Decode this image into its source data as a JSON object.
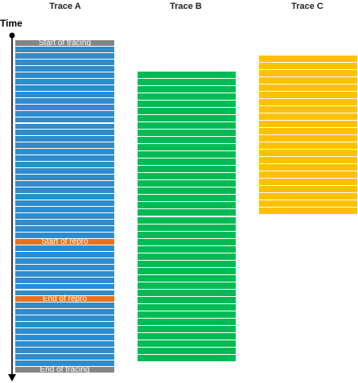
{
  "time_label": "Time",
  "traces": [
    {
      "name": "Trace A",
      "color": "#2f8ccc",
      "rows": 52,
      "markers": [
        {
          "label": "Start of tracing",
          "row": 0,
          "color": "#848484"
        },
        {
          "label": "Start of repro",
          "row": 31,
          "color": "#e8731e"
        },
        {
          "label": "End of repro",
          "row": 40,
          "color": "#e8731e"
        },
        {
          "label": "End of tracing",
          "row": 51,
          "color": "#848484"
        }
      ]
    },
    {
      "name": "Trace B",
      "color": "#00bb55",
      "rows": 40,
      "markers": []
    },
    {
      "name": "Trace C",
      "color": "#ffc000",
      "rows": 22,
      "markers": []
    }
  ]
}
